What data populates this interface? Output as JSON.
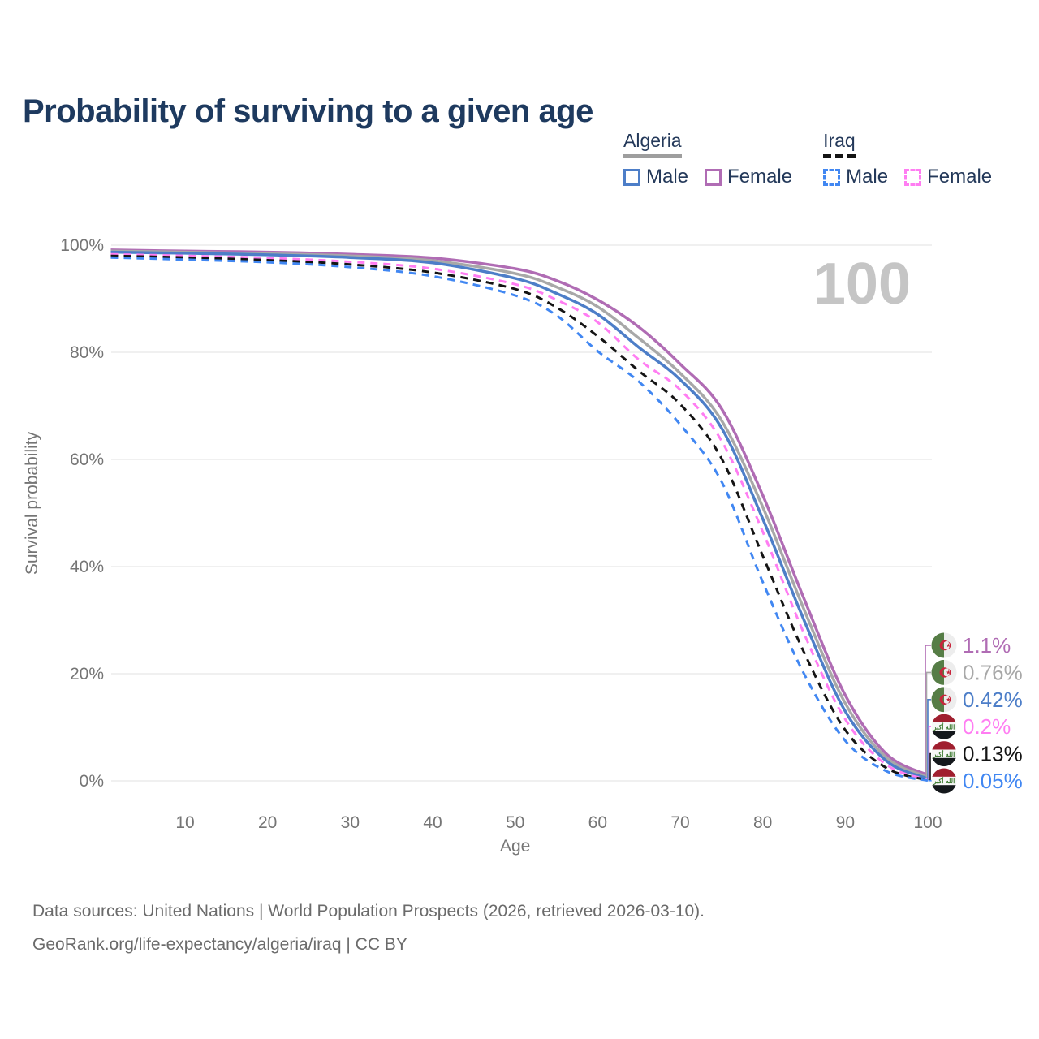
{
  "title": "Probability of surviving to a given age",
  "legend": {
    "groups": [
      {
        "country": "Algeria",
        "line_style": "solid",
        "line_color": "#9e9e9e",
        "items": [
          {
            "label": "Male",
            "color": "#4d7ec8",
            "dashed": false
          },
          {
            "label": "Female",
            "color": "#b06cb4",
            "dashed": false
          }
        ]
      },
      {
        "country": "Iraq",
        "line_style": "dashed",
        "line_color": "#141414",
        "items": [
          {
            "label": "Male",
            "color": "#4187f2",
            "dashed": true
          },
          {
            "label": "Female",
            "color": "#ff7df2",
            "dashed": true
          }
        ]
      }
    ]
  },
  "chart_data": {
    "type": "line",
    "title": "Probability of surviving to a given age",
    "xlabel": "Age",
    "ylabel": "Survival probability",
    "xlim": [
      0,
      100
    ],
    "ylim": [
      0,
      100
    ],
    "grid": "horizontal",
    "legend_position": "top-right",
    "watermark": "100",
    "x_tick_values": [
      10,
      20,
      30,
      40,
      50,
      60,
      70,
      80,
      90,
      100
    ],
    "y_tick_values": [
      100,
      80,
      60,
      40,
      20,
      0
    ],
    "y_tick_labels": [
      "100%",
      "80%",
      "60%",
      "40%",
      "20%",
      "0%"
    ],
    "ages": [
      1,
      10,
      20,
      30,
      40,
      50,
      55,
      60,
      65,
      70,
      75,
      80,
      85,
      90,
      95,
      100
    ],
    "series": [
      {
        "name": "Algeria Female",
        "country": "Algeria",
        "sex": "Female",
        "color": "#b06cb4",
        "dashed": false,
        "flag": "algeria",
        "end_label": "1.1%",
        "values": [
          99.1,
          98.9,
          98.7,
          98.3,
          97.6,
          95.6,
          93.4,
          89.8,
          84.7,
          77.8,
          69.5,
          53.3,
          34,
          16,
          5,
          1.1
        ]
      },
      {
        "name": "Algeria",
        "country": "Algeria",
        "sex": "Both",
        "color": "#a8a8a8",
        "dashed": false,
        "flag": "algeria",
        "end_label": "0.76%",
        "values": [
          98.9,
          98.7,
          98.4,
          98,
          97.1,
          94.7,
          92.2,
          88.5,
          82.6,
          76.1,
          67.3,
          51.1,
          32,
          14.5,
          4.3,
          0.76
        ]
      },
      {
        "name": "Algeria Male",
        "country": "Algeria",
        "sex": "Male",
        "color": "#4d7ec8",
        "dashed": false,
        "flag": "algeria",
        "end_label": "0.42%",
        "values": [
          98.7,
          98.5,
          98.2,
          97.7,
          96.7,
          93.8,
          91,
          87.1,
          80.9,
          74.9,
          65.9,
          48.9,
          30,
          13,
          3.7,
          0.42
        ]
      },
      {
        "name": "Iraq Female",
        "country": "Iraq",
        "sex": "Female",
        "color": "#ff7df2",
        "dashed": true,
        "flag": "iraq",
        "end_label": "0.2%",
        "values": [
          98.3,
          98,
          97.6,
          96.9,
          95.6,
          92.7,
          89.8,
          85.6,
          78.6,
          73,
          63.5,
          46.5,
          27.5,
          11.5,
          3,
          0.2
        ]
      },
      {
        "name": "Iraq",
        "country": "Iraq",
        "sex": "Both",
        "color": "#141414",
        "dashed": true,
        "flag": "iraq",
        "end_label": "0.13%",
        "values": [
          98,
          97.7,
          97.2,
          96.4,
          94.9,
          91.8,
          88.4,
          83,
          76.5,
          70.3,
          60.2,
          42,
          24,
          9.5,
          2.4,
          0.13
        ]
      },
      {
        "name": "Iraq Male",
        "country": "Iraq",
        "sex": "Male",
        "color": "#4187f2",
        "dashed": true,
        "flag": "iraq",
        "end_label": "0.05%",
        "values": [
          97.7,
          97.3,
          96.8,
          95.9,
          94.2,
          90.6,
          86.9,
          80.2,
          74.5,
          66.5,
          55.9,
          37.1,
          20,
          7.5,
          1.8,
          0.05
        ]
      }
    ]
  },
  "footer": {
    "line1": "Data sources: United Nations | World Population Prospects (2026, retrieved 2026-03-10).",
    "line2": "GeoRank.org/life-expectancy/algeria/iraq | CC BY"
  }
}
